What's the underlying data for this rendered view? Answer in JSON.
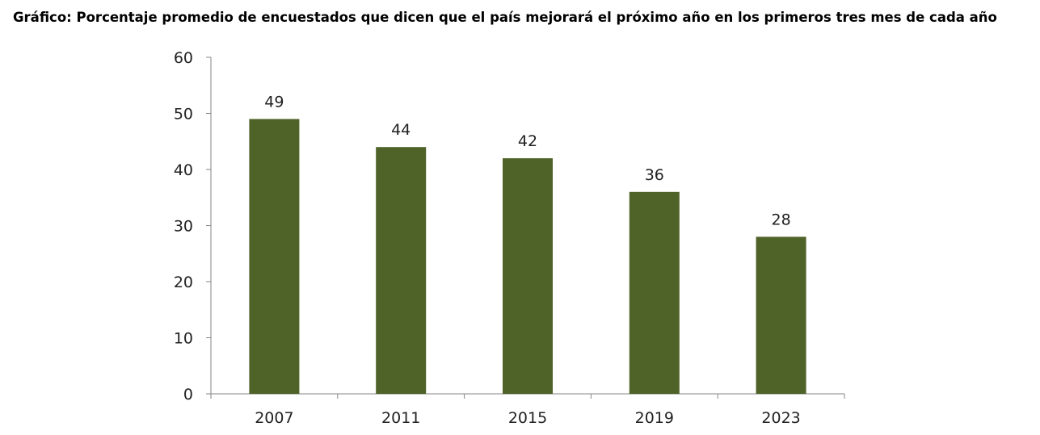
{
  "chart_data": {
    "type": "bar",
    "title": "Gráfico: Porcentaje promedio de encuestados que dicen que el país mejorará el próximo año en los primeros tres mes de cada año",
    "categories": [
      "2007",
      "2011",
      "2015",
      "2019",
      "2023"
    ],
    "values": [
      49,
      44,
      42,
      36,
      28
    ],
    "data_labels": [
      "49",
      "44",
      "42",
      "36",
      "28"
    ],
    "ylim": [
      0,
      60
    ],
    "yticks": [
      0,
      10,
      20,
      30,
      40,
      50,
      60
    ],
    "ytick_labels": [
      "0",
      "10",
      "20",
      "30",
      "40",
      "50",
      "60"
    ],
    "xlabel": "",
    "ylabel": "",
    "grid": false,
    "legend": "none",
    "bar_color": "#4f6228"
  }
}
